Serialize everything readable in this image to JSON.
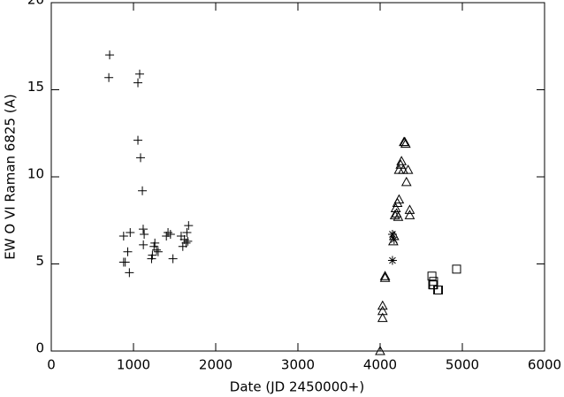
{
  "chart_data": {
    "type": "scatter",
    "xlabel": "Date (JD 2450000+)",
    "ylabel": "EW   O VI Raman 6825 (A)",
    "xlim": [
      0,
      6000
    ],
    "xticks": [
      0,
      1000,
      2000,
      3000,
      4000,
      5000,
      6000
    ],
    "ylim": [
      0,
      20
    ],
    "yticks": [
      0,
      5,
      10,
      15,
      20
    ],
    "color": "#000000",
    "series": [
      {
        "marker": "plus",
        "x": [
          700,
          710,
          1054,
          1075,
          1054,
          1086,
          1108,
          1118,
          1130,
          1120,
          880,
          960,
          930,
          880,
          900,
          950,
          1220,
          1230,
          1250,
          1280,
          1260,
          1300,
          1400,
          1420,
          1450,
          1480,
          1580,
          1620,
          1640,
          1660,
          1650,
          1670,
          1600
        ],
        "y": [
          15.7,
          17.0,
          15.4,
          15.9,
          12.1,
          11.1,
          9.2,
          7.0,
          6.7,
          6.1,
          6.6,
          6.8,
          5.7,
          5.1,
          5.1,
          4.5,
          5.3,
          5.5,
          6.0,
          5.8,
          6.2,
          5.7,
          6.6,
          6.8,
          6.7,
          5.3,
          6.6,
          6.4,
          6.2,
          6.3,
          6.8,
          7.2,
          6.0
        ]
      },
      {
        "marker": "asterisk",
        "x": [
          4150,
          4170,
          4150
        ],
        "y": [
          6.7,
          6.4,
          5.2
        ]
      },
      {
        "marker": "triangle",
        "x": [
          4000,
          4030,
          4030,
          4030,
          4060,
          4060,
          4160,
          4170,
          4180,
          4200,
          4190,
          4210,
          4230,
          4220,
          4230,
          4250,
          4260,
          4290,
          4300,
          4310,
          4320,
          4340,
          4360,
          4360,
          4280
        ],
        "y": [
          0.0,
          1.9,
          2.3,
          2.6,
          4.2,
          4.3,
          6.3,
          6.6,
          7.8,
          7.9,
          8.2,
          8.5,
          8.7,
          7.7,
          10.4,
          10.7,
          10.9,
          12.0,
          12.0,
          11.9,
          9.7,
          10.4,
          8.1,
          7.8,
          10.4
        ]
      },
      {
        "marker": "square",
        "x": [
          4630,
          4650,
          4650,
          4640,
          4700,
          4710,
          4930
        ],
        "y": [
          4.3,
          4.0,
          3.8,
          3.8,
          3.5,
          3.5,
          4.7
        ]
      }
    ]
  }
}
